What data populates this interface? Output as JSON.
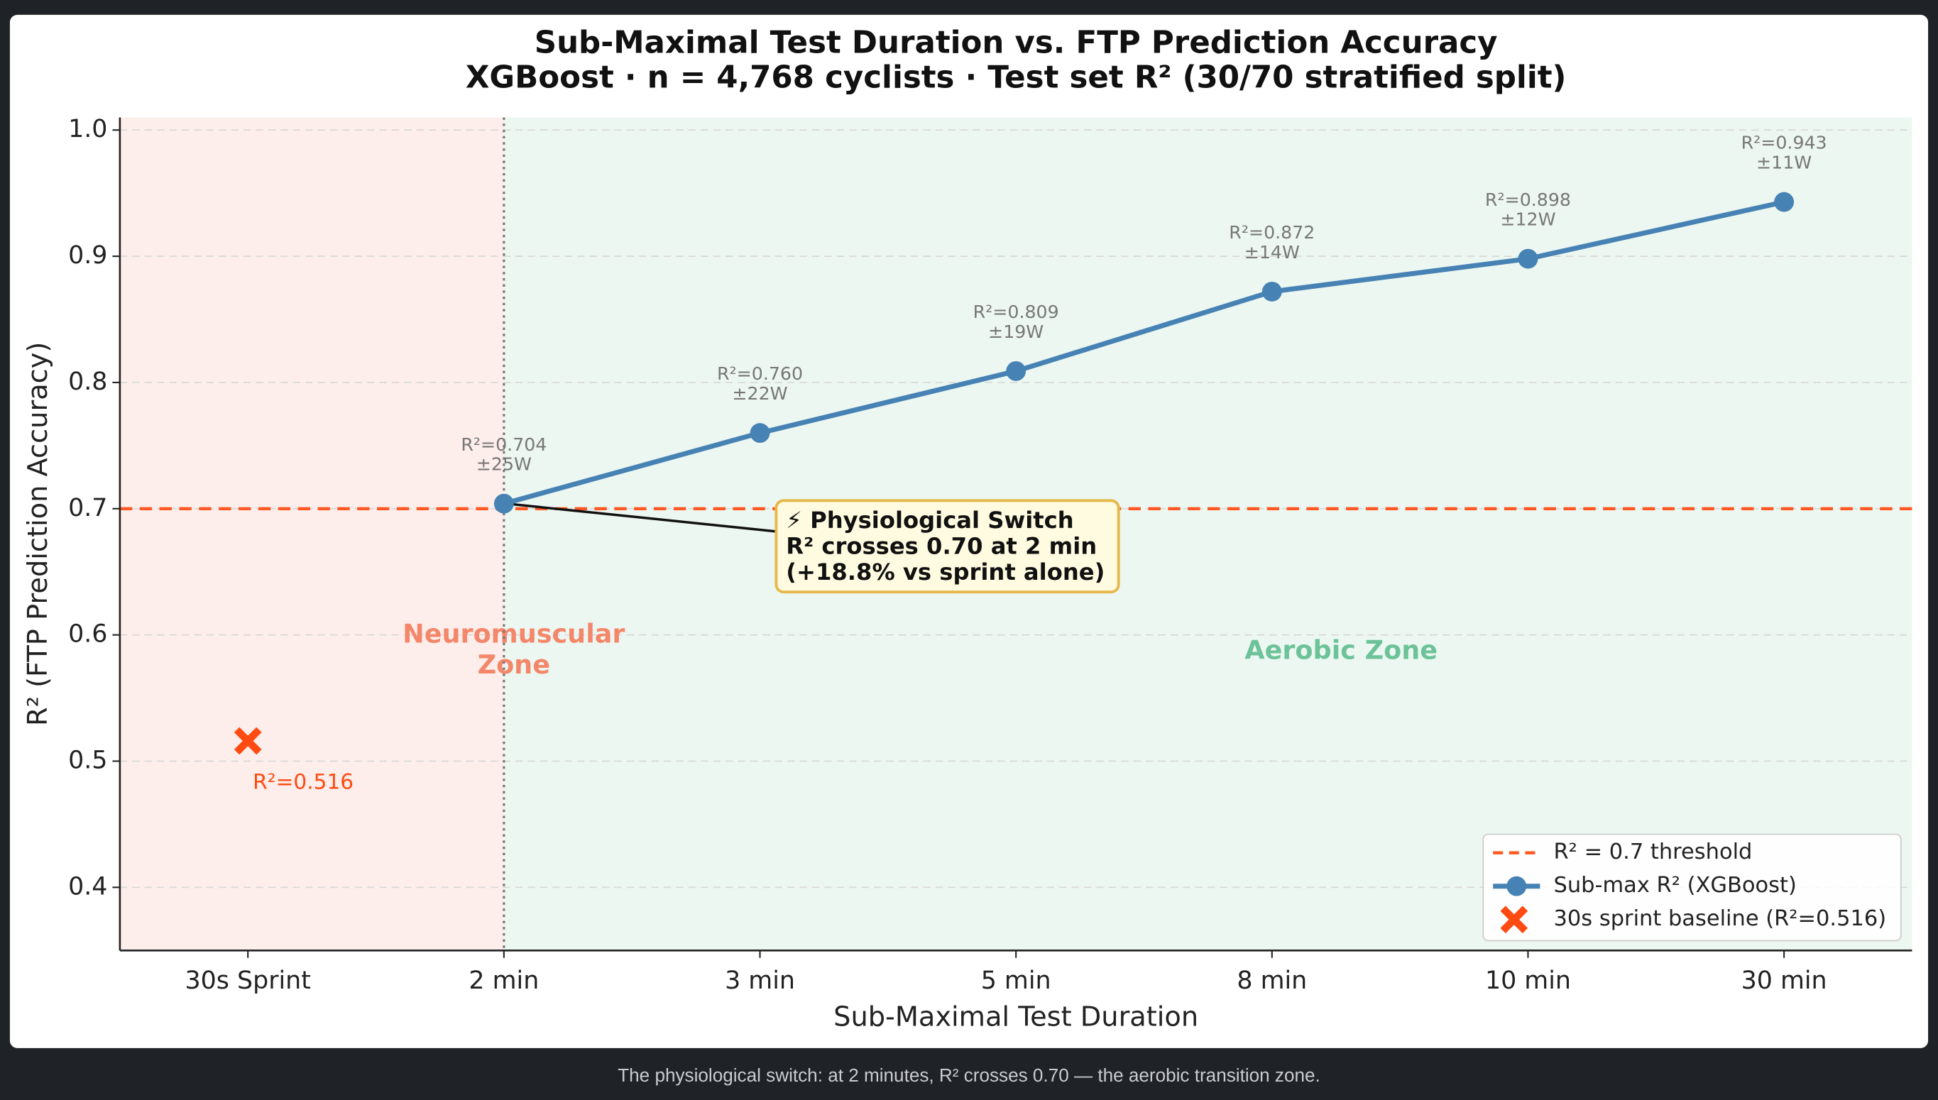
{
  "chart_data": {
    "type": "line",
    "title": "Sub-Maximal Test Duration vs. FTP Prediction Accuracy",
    "subtitle": "XGBoost · n = 4,768 cyclists · Test set R² (30/70 stratified split)",
    "x_label": "Sub-Maximal Test Duration",
    "y_label": "R²  (FTP Prediction Accuracy)",
    "categories": [
      "30s Sprint",
      "2 min",
      "3 min",
      "5 min",
      "8 min",
      "10 min",
      "30 min"
    ],
    "series": [
      {
        "name": "Sub-max R² (XGBoost)",
        "color": "#4682b4",
        "marker": "circle",
        "values": [
          null,
          0.704,
          0.76,
          0.809,
          0.872,
          0.898,
          0.943
        ],
        "value_labels": [
          null,
          "R²=0.704",
          "R²=0.760",
          "R²=0.809",
          "R²=0.872",
          "R²=0.898",
          "R²=0.943"
        ],
        "error_labels": [
          null,
          "±25W",
          "±22W",
          "±19W",
          "±14W",
          "±12W",
          "±11W"
        ]
      },
      {
        "name": "30s sprint baseline (R²=0.516)",
        "color": "#ff4a12",
        "marker": "x",
        "values": [
          0.516,
          null,
          null,
          null,
          null,
          null,
          null
        ],
        "value_labels": [
          "R²=0.516",
          null,
          null,
          null,
          null,
          null,
          null
        ]
      }
    ],
    "threshold": {
      "name": "R² = 0.7 threshold",
      "value": 0.7,
      "color": "#ff5722"
    },
    "zones": [
      {
        "label": [
          "Neuromuscular",
          "Zone"
        ],
        "color": "#fdeeeb",
        "text_color": "#f4876a"
      },
      {
        "label": [
          "Aerobic Zone"
        ],
        "color": "#edf7f1",
        "text_color": "#6cc399"
      }
    ],
    "annotation": [
      "⚡ Physiological Switch",
      "R² crosses 0.70 at 2 min",
      "(+18.8% vs sprint alone)"
    ],
    "ylim": [
      0.35,
      1.01
    ],
    "yticks": [
      0.4,
      0.5,
      0.6,
      0.7,
      0.8,
      0.9,
      {
        "value": 1,
        "label": "1.0"
      }
    ],
    "grid": true,
    "legend": "lower right"
  },
  "caption": "The physiological switch: at 2 minutes, R² crosses 0.70 — the aerobic transition zone."
}
